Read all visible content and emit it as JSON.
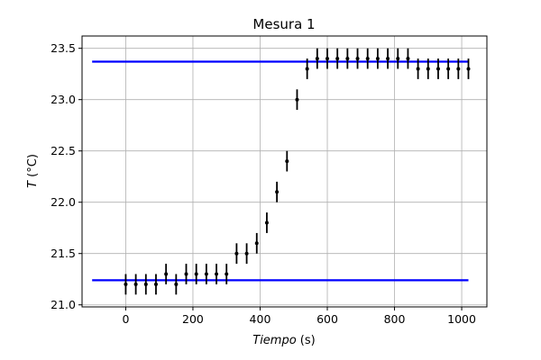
{
  "chart_data": {
    "type": "scatter",
    "title": "Mesura 1",
    "xlabel_italic": "Tiempo",
    "xlabel_unit": " (s)",
    "ylabel_italic": "T",
    "ylabel_unit": " (°C)",
    "xlim": [
      -130,
      1075
    ],
    "ylim": [
      20.98,
      23.62
    ],
    "xticks": [
      0,
      200,
      400,
      600,
      800,
      1000
    ],
    "yticks": [
      21.0,
      21.5,
      22.0,
      22.5,
      23.0,
      23.5
    ],
    "ytick_labels": [
      "21.0",
      "21.5",
      "22.0",
      "22.5",
      "23.0",
      "23.5"
    ],
    "grid": true,
    "colors": {
      "points": "#000000",
      "lines": "#0000ff",
      "grid": "#b0b0b0"
    },
    "series": [
      {
        "kind": "errorbar",
        "yerr": 0.1,
        "x": [
          0,
          30,
          60,
          90,
          120,
          150,
          180,
          210,
          240,
          270,
          300,
          330,
          360,
          390,
          420,
          450,
          480,
          510,
          540,
          570,
          600,
          630,
          660,
          690,
          720,
          750,
          780,
          810,
          840,
          870,
          900,
          930,
          960,
          990,
          1020
        ],
        "y": [
          21.2,
          21.2,
          21.2,
          21.2,
          21.3,
          21.2,
          21.3,
          21.3,
          21.3,
          21.3,
          21.3,
          21.5,
          21.5,
          21.6,
          21.8,
          22.1,
          22.4,
          23.0,
          23.3,
          23.4,
          23.4,
          23.4,
          23.4,
          23.4,
          23.4,
          23.4,
          23.4,
          23.4,
          23.4,
          23.3,
          23.3,
          23.3,
          23.3,
          23.3,
          23.3
        ]
      }
    ],
    "hlines": [
      {
        "y": 23.37,
        "xmin": -100,
        "xmax": 1020
      },
      {
        "y": 21.24,
        "xmin": -100,
        "xmax": 1020
      }
    ]
  }
}
